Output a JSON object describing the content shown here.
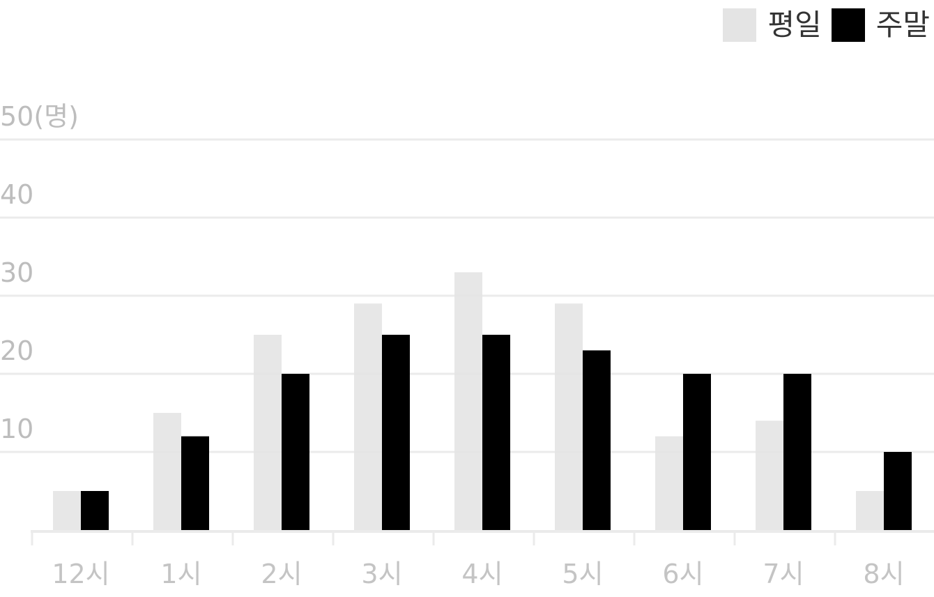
{
  "chart_data": {
    "type": "bar",
    "title": "",
    "xlabel": "",
    "ylabel": "",
    "y_unit_label": "50(명)",
    "y_ticks": [
      "10",
      "20",
      "30",
      "40"
    ],
    "categories": [
      "12시",
      "1시",
      "2시",
      "3시",
      "4시",
      "5시",
      "6시",
      "7시",
      "8시"
    ],
    "series": [
      {
        "name": "평일",
        "color": "#e4e4e4",
        "values": [
          5,
          15,
          25,
          29,
          33,
          29,
          12,
          14,
          5
        ]
      },
      {
        "name": "주말",
        "color": "#000000",
        "values": [
          5,
          12,
          20,
          25,
          25,
          23,
          20,
          20,
          10
        ]
      }
    ],
    "ylim": [
      0,
      50
    ],
    "grid": true,
    "legend_position": "top-right"
  }
}
